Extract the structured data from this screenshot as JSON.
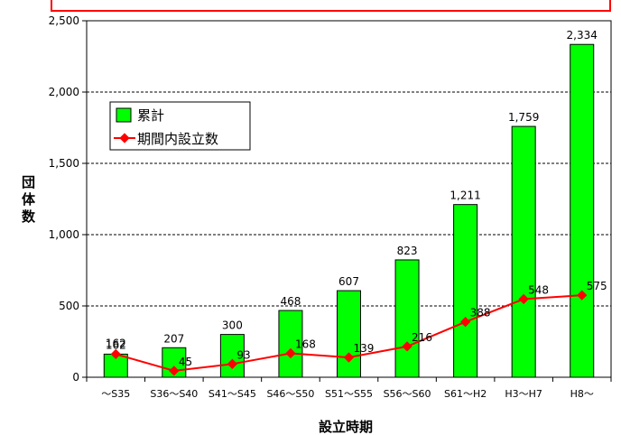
{
  "chart_data": {
    "type": "bar",
    "categories": [
      "～S35",
      "S36～S40",
      "S41～S45",
      "S46～S50",
      "S51～S55",
      "S56～S60",
      "S61～H2",
      "H3～H7",
      "H8～"
    ],
    "series": [
      {
        "name": "累計",
        "kind": "bar",
        "color": "#00ff00",
        "values": [
          162,
          207,
          300,
          468,
          607,
          823,
          1211,
          1759,
          2334
        ],
        "labels": [
          "162",
          "207",
          "300",
          "468",
          "607",
          "823",
          "1,211",
          "1,759",
          "2,334"
        ]
      },
      {
        "name": "期間内設立数",
        "kind": "line",
        "color": "#ff0000",
        "values": [
          162,
          45,
          93,
          168,
          139,
          216,
          388,
          548,
          575
        ],
        "labels": [
          "162",
          "45",
          "93",
          "168",
          "139",
          "216",
          "388",
          "548",
          "575"
        ]
      }
    ],
    "ylim": [
      0,
      2500
    ],
    "yticks": [
      0,
      500,
      1000,
      1500,
      2000,
      2500
    ],
    "ytick_labels": [
      "0",
      "500",
      "1,000",
      "1,500",
      "2,000",
      "2,500"
    ],
    "ylabel": "団体数",
    "xlabel": "設立時期",
    "grid": "horizontal dashed",
    "legend_position": "top-left"
  }
}
